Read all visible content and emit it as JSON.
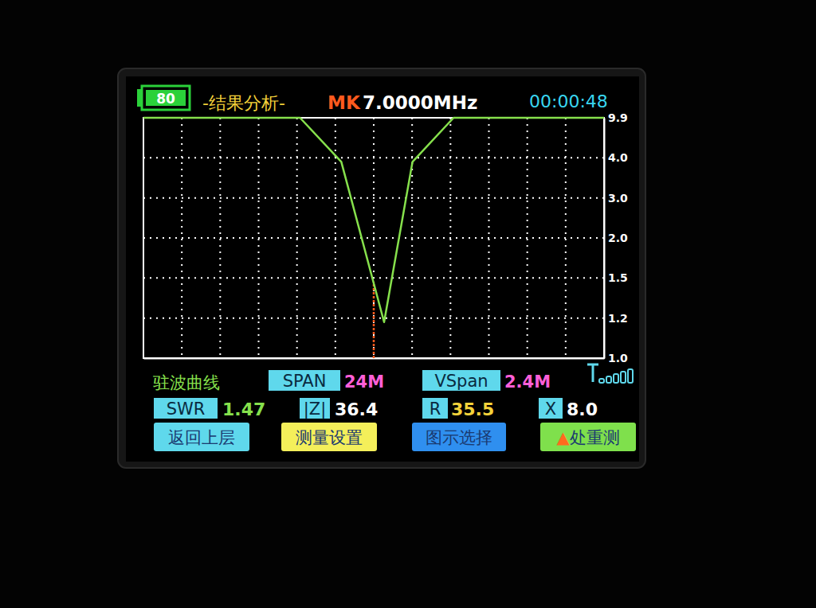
{
  "header": {
    "battery": "80",
    "title": "-结果分析-",
    "marker_label": "MK",
    "marker_frequency": "7.0000MHz",
    "clock": "00:00:48"
  },
  "chart_data": {
    "type": "line",
    "x": [
      -5,
      1,
      3.16,
      5.31,
      7.54,
      9.02,
      11.16,
      15,
      19
    ],
    "series": [
      {
        "color": "#86e04c",
        "values": [
          9.9,
          9.9,
          9.9,
          3.9,
          1.18,
          3.9,
          9.9,
          9.9,
          9.9
        ]
      }
    ],
    "xlim": [
      -5,
      19
    ],
    "xticks": [
      -5,
      -3,
      -1,
      1,
      3,
      5,
      7,
      9,
      11,
      13,
      15,
      17,
      19
    ],
    "ylim": [
      1.0,
      9.9
    ],
    "yticks": [
      {
        "value": 1,
        "label": "1.0"
      },
      1.2,
      1.5,
      {
        "value": 2,
        "label": "2.0"
      },
      {
        "value": 3,
        "label": "3.0"
      },
      {
        "value": 4,
        "label": "4.0"
      },
      9.9
    ],
    "grid": true,
    "tick_labels": "y"
  },
  "cursor": {
    "x": 7,
    "swr": 1.47,
    "color": "#ff5a1e"
  },
  "status": {
    "curve_label": "驻波曲线",
    "span_label": "SPAN",
    "span": "24M",
    "vspan_label": "VSpan",
    "vspan": "2.4M",
    "readings": [
      {
        "label": "SWR",
        "value": "1.47"
      },
      {
        "label": "|Z|",
        "value": "36.4"
      },
      {
        "label": "R",
        "value": "35.5"
      },
      {
        "label": "X",
        "value": "8.0"
      }
    ],
    "buttons": [
      "返回上层",
      "测量设置",
      "图示选择",
      "▲处重测"
    ]
  }
}
